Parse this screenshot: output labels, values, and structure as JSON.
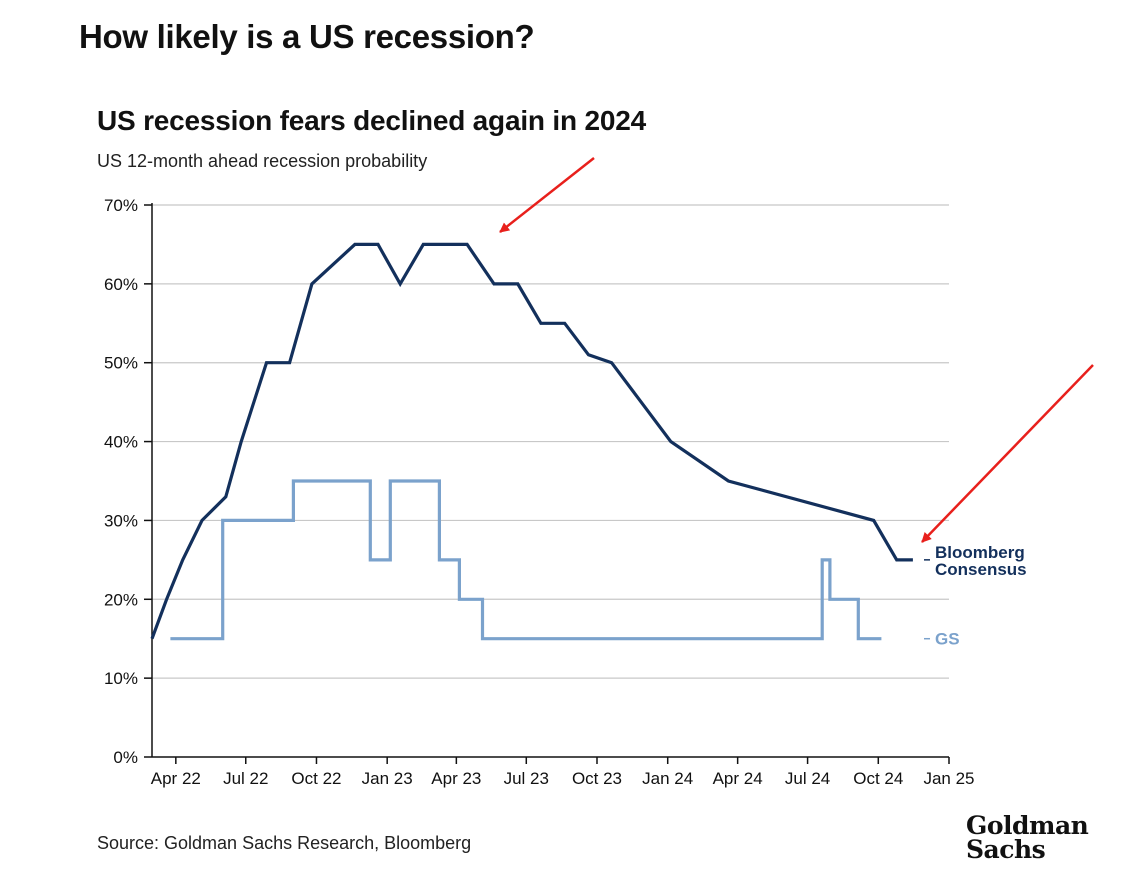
{
  "page_title": "How likely is a US recession?",
  "source": "Source: Goldman Sachs Research, Bloomberg",
  "logo": {
    "line1": "Goldman",
    "line2": "Sachs"
  },
  "colors": {
    "bloomberg": "#13305c",
    "gs": "#7ba2cc",
    "grid": "#c8c8c8",
    "arrow": "#e8201c",
    "axis": "#111111"
  },
  "chart_data": {
    "type": "line",
    "title": "US recession fears declined again in 2024",
    "subtitle": "US 12-month ahead recession probability",
    "y_unit": "%",
    "ylim": [
      0,
      70
    ],
    "y_ticks": [
      0,
      10,
      20,
      30,
      40,
      50,
      60,
      70
    ],
    "y_tick_labels": [
      "0%",
      "10%",
      "20%",
      "30%",
      "40%",
      "50%",
      "60%",
      "70%"
    ],
    "xlim": [
      "2022-03-01",
      "2025-01-01"
    ],
    "x_ticks": [
      "2022-04-01",
      "2022-07-01",
      "2022-10-01",
      "2023-01-01",
      "2023-04-01",
      "2023-07-01",
      "2023-10-01",
      "2024-01-01",
      "2024-04-01",
      "2024-07-01",
      "2024-10-01",
      "2025-01-01"
    ],
    "x_tick_labels": [
      "Apr 22",
      "Jul 22",
      "Oct 22",
      "Jan 23",
      "Apr 23",
      "Jul 23",
      "Oct 23",
      "Jan 24",
      "Apr 24",
      "Jul 24",
      "Oct 24",
      "Jan 25"
    ],
    "grid": "horizontal",
    "series": [
      {
        "name": "Bloomberg Consensus",
        "label_lines": [
          "Bloomberg",
          "Consensus"
        ],
        "color": "#13305c",
        "points": [
          [
            "2022-03-01",
            15
          ],
          [
            "2022-03-20",
            20
          ],
          [
            "2022-04-10",
            25
          ],
          [
            "2022-05-05",
            30
          ],
          [
            "2022-06-05",
            33
          ],
          [
            "2022-06-25",
            40
          ],
          [
            "2022-07-28",
            50
          ],
          [
            "2022-08-27",
            50
          ],
          [
            "2022-09-25",
            60
          ],
          [
            "2022-11-20",
            65
          ],
          [
            "2022-12-20",
            65
          ],
          [
            "2023-01-18",
            60
          ],
          [
            "2023-02-17",
            65
          ],
          [
            "2023-04-15",
            65
          ],
          [
            "2023-05-20",
            60
          ],
          [
            "2023-06-20",
            60
          ],
          [
            "2023-07-20",
            55
          ],
          [
            "2023-08-20",
            55
          ],
          [
            "2023-09-20",
            51
          ],
          [
            "2023-10-20",
            50
          ],
          [
            "2024-01-05",
            40
          ],
          [
            "2024-03-20",
            35
          ],
          [
            "2024-09-25",
            30
          ],
          [
            "2024-10-25",
            25
          ],
          [
            "2024-11-15",
            25
          ]
        ]
      },
      {
        "name": "GS",
        "label_lines": [
          "GS"
        ],
        "color": "#7ba2cc",
        "points": [
          [
            "2022-03-25",
            15
          ],
          [
            "2022-06-01",
            15
          ],
          [
            "2022-06-01",
            30
          ],
          [
            "2022-09-01",
            30
          ],
          [
            "2022-09-01",
            35
          ],
          [
            "2022-12-10",
            35
          ],
          [
            "2022-12-10",
            25
          ],
          [
            "2023-01-05",
            25
          ],
          [
            "2023-01-05",
            35
          ],
          [
            "2023-03-10",
            35
          ],
          [
            "2023-03-10",
            25
          ],
          [
            "2023-04-05",
            25
          ],
          [
            "2023-04-05",
            20
          ],
          [
            "2023-05-05",
            20
          ],
          [
            "2023-05-05",
            15
          ],
          [
            "2024-07-20",
            15
          ],
          [
            "2024-07-20",
            25
          ],
          [
            "2024-07-30",
            25
          ],
          [
            "2024-07-30",
            20
          ],
          [
            "2024-09-05",
            20
          ],
          [
            "2024-09-05",
            15
          ],
          [
            "2024-10-05",
            15
          ]
        ]
      }
    ]
  }
}
